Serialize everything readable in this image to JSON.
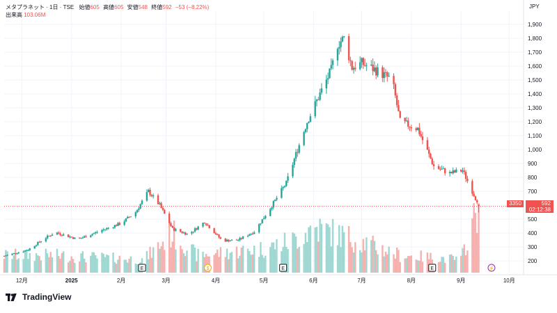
{
  "legend": {
    "symbol": "メタプラネット · 1日 · TSE",
    "open_label": "始値",
    "open": "605",
    "high_label": "高値",
    "high": "605",
    "low_label": "安値",
    "low": "548",
    "close_label": "終値",
    "close": "592",
    "change": "−53 (−8.22%)",
    "volume_label": "出来高",
    "volume": "103.06M"
  },
  "price_tag": {
    "left": "3350",
    "price": "592",
    "countdown": "02:12:38"
  },
  "brand": {
    "name": "TradingView"
  },
  "colors": {
    "up": "#26a69a",
    "down": "#ef5350",
    "up_volume": "#9fd8d2",
    "down_volume": "#f6b0ae",
    "grid": "#f0f3fa",
    "axis_text": "#131722"
  },
  "chart_data": {
    "type": "candlestick",
    "currency": "JPY",
    "y_axis_label": "JPY",
    "y_ticks": [
      200,
      300,
      400,
      500,
      600,
      700,
      800,
      900,
      1000,
      1100,
      1200,
      1300,
      1400,
      1500,
      1600,
      1700,
      1800,
      1900
    ],
    "y_tick_labels": [
      "200",
      "300",
      "400",
      "500",
      "600",
      "700",
      "800",
      "900",
      "1,000",
      "1,100",
      "1,200",
      "1,300",
      "1,400",
      "1,500",
      "1,600",
      "1,700",
      "1,800",
      "1,900"
    ],
    "x_ticks": [
      {
        "date": "2024-12-01",
        "label": "12月"
      },
      {
        "date": "2025-01-01",
        "label": "2025"
      },
      {
        "date": "2025-02-01",
        "label": "2月"
      },
      {
        "date": "2025-03-01",
        "label": "3月"
      },
      {
        "date": "2025-04-01",
        "label": "4月"
      },
      {
        "date": "2025-05-01",
        "label": "5月"
      },
      {
        "date": "2025-06-01",
        "label": "6月"
      },
      {
        "date": "2025-07-01",
        "label": "7月"
      },
      {
        "date": "2025-08-01",
        "label": "8月"
      },
      {
        "date": "2025-09-01",
        "label": "9月"
      },
      {
        "date": "2025-10-01",
        "label": "10月"
      }
    ],
    "x_range": [
      "2024-11-20",
      "2025-10-10"
    ],
    "y_range": [
      100,
      2000
    ],
    "last_price": 592,
    "grid": true,
    "price_anchors": [
      [
        "2024-11-20",
        235
      ],
      [
        "2024-12-05",
        280
      ],
      [
        "2024-12-15",
        360
      ],
      [
        "2024-12-22",
        405
      ],
      [
        "2025-01-05",
        355
      ],
      [
        "2025-01-20",
        420
      ],
      [
        "2025-02-01",
        470
      ],
      [
        "2025-02-10",
        550
      ],
      [
        "2025-02-18",
        700
      ],
      [
        "2025-02-25",
        600
      ],
      [
        "2025-03-05",
        430
      ],
      [
        "2025-03-15",
        390
      ],
      [
        "2025-03-25",
        480
      ],
      [
        "2025-04-05",
        345
      ],
      [
        "2025-04-15",
        350
      ],
      [
        "2025-04-25",
        410
      ],
      [
        "2025-05-05",
        580
      ],
      [
        "2025-05-15",
        760
      ],
      [
        "2025-05-22",
        1000
      ],
      [
        "2025-05-28",
        1200
      ],
      [
        "2025-06-05",
        1400
      ],
      [
        "2025-06-12",
        1570
      ],
      [
        "2025-06-16",
        1760
      ],
      [
        "2025-06-20",
        1800
      ],
      [
        "2025-06-25",
        1590
      ],
      [
        "2025-07-01",
        1620
      ],
      [
        "2025-07-10",
        1570
      ],
      [
        "2025-07-20",
        1500
      ],
      [
        "2025-07-25",
        1200
      ],
      [
        "2025-08-05",
        1150
      ],
      [
        "2025-08-15",
        880
      ],
      [
        "2025-08-25",
        830
      ],
      [
        "2025-09-02",
        850
      ],
      [
        "2025-09-10",
        650
      ],
      [
        "2025-09-14",
        592
      ]
    ],
    "volume_anchors": [
      [
        "2024-11-20",
        80
      ],
      [
        "2024-12-20",
        80
      ],
      [
        "2025-02-15",
        60
      ],
      [
        "2025-03-05",
        180
      ],
      [
        "2025-03-20",
        80
      ],
      [
        "2025-05-01",
        110
      ],
      [
        "2025-05-20",
        150
      ],
      [
        "2025-06-01",
        210
      ],
      [
        "2025-06-20",
        170
      ],
      [
        "2025-07-25",
        80
      ],
      [
        "2025-09-01",
        60
      ],
      [
        "2025-09-12",
        320
      ],
      [
        "2025-09-14",
        103
      ]
    ],
    "events": [
      {
        "date": "2025-02-14",
        "label": "E"
      },
      {
        "date": "2025-03-27",
        "label": "$"
      },
      {
        "date": "2025-05-13",
        "label": "E"
      },
      {
        "date": "2025-08-14",
        "label": "E"
      },
      {
        "date": "2025-09-20",
        "label": "⚡"
      }
    ]
  }
}
